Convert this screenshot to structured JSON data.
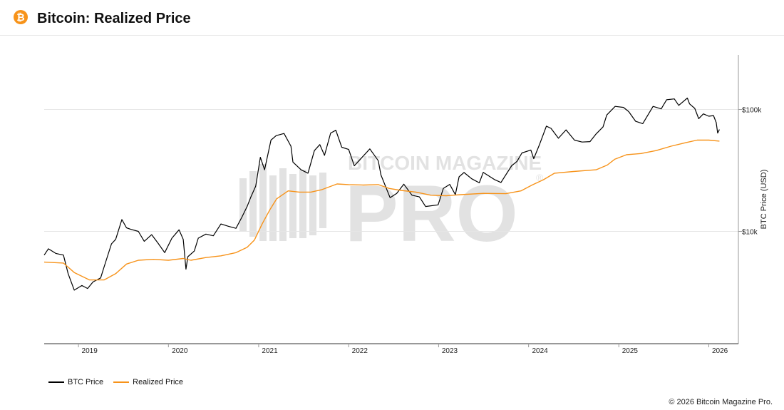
{
  "header": {
    "title": "Bitcoin: Realized Price",
    "icon": "bitcoin-icon"
  },
  "watermark": {
    "text_top": "BITCOIN MAGAZINE",
    "text_main": "PRO",
    "reg_mark": "®"
  },
  "colors": {
    "btc_price": "#000000",
    "realized_price": "#f7931a",
    "brand": "#f7931a",
    "grid": "#e6e6e6",
    "watermark": "#cccccc"
  },
  "chart_data": {
    "type": "line",
    "title": "Bitcoin: Realized Price",
    "xlabel": "",
    "ylabel": "BTC Price (USD)",
    "yscale": "log",
    "ylim": [
      1200,
      280000
    ],
    "xlim": [
      "2018-08-15",
      "2026-05-01"
    ],
    "x_ticks": [
      "2019",
      "2020",
      "2021",
      "2022",
      "2023",
      "2024",
      "2025",
      "2026"
    ],
    "y_ticks": [
      {
        "value": 10000,
        "label": "$10k"
      },
      {
        "value": 100000,
        "label": "$100k"
      }
    ],
    "grid": "horizontal",
    "legend": "bottom-left",
    "series": [
      {
        "name": "BTC Price",
        "color": "#000000",
        "points": [
          [
            "2018-08-15",
            6400
          ],
          [
            "2018-09-01",
            7200
          ],
          [
            "2018-10-01",
            6600
          ],
          [
            "2018-11-01",
            6400
          ],
          [
            "2018-11-20",
            4500
          ],
          [
            "2018-12-15",
            3300
          ],
          [
            "2019-01-15",
            3600
          ],
          [
            "2019-02-07",
            3400
          ],
          [
            "2019-03-01",
            3850
          ],
          [
            "2019-04-01",
            4150
          ],
          [
            "2019-04-15",
            5100
          ],
          [
            "2019-05-15",
            7900
          ],
          [
            "2019-06-01",
            8600
          ],
          [
            "2019-06-26",
            12500
          ],
          [
            "2019-07-15",
            10700
          ],
          [
            "2019-08-01",
            10400
          ],
          [
            "2019-09-01",
            10000
          ],
          [
            "2019-09-25",
            8300
          ],
          [
            "2019-10-25",
            9400
          ],
          [
            "2019-11-20",
            8000
          ],
          [
            "2019-12-17",
            6700
          ],
          [
            "2020-01-15",
            8800
          ],
          [
            "2020-02-13",
            10300
          ],
          [
            "2020-03-01",
            8600
          ],
          [
            "2020-03-12",
            4900
          ],
          [
            "2020-03-20",
            6200
          ],
          [
            "2020-04-15",
            6900
          ],
          [
            "2020-05-01",
            8800
          ],
          [
            "2020-06-01",
            9500
          ],
          [
            "2020-07-01",
            9200
          ],
          [
            "2020-08-01",
            11500
          ],
          [
            "2020-09-01",
            11000
          ],
          [
            "2020-10-01",
            10600
          ],
          [
            "2020-10-25",
            13100
          ],
          [
            "2020-11-15",
            16000
          ],
          [
            "2020-12-01",
            19300
          ],
          [
            "2020-12-20",
            23500
          ],
          [
            "2021-01-08",
            40500
          ],
          [
            "2021-01-25",
            32000
          ],
          [
            "2021-02-20",
            56000
          ],
          [
            "2021-03-13",
            61000
          ],
          [
            "2021-04-14",
            63500
          ],
          [
            "2021-05-12",
            50000
          ],
          [
            "2021-05-20",
            37000
          ],
          [
            "2021-06-22",
            32000
          ],
          [
            "2021-07-20",
            30000
          ],
          [
            "2021-08-15",
            46000
          ],
          [
            "2021-09-06",
            51500
          ],
          [
            "2021-09-25",
            42000
          ],
          [
            "2021-10-20",
            64000
          ],
          [
            "2021-11-10",
            67500
          ],
          [
            "2021-12-04",
            49000
          ],
          [
            "2022-01-01",
            47000
          ],
          [
            "2022-01-24",
            34500
          ],
          [
            "2022-03-28",
            47500
          ],
          [
            "2022-05-01",
            38000
          ],
          [
            "2022-05-12",
            29000
          ],
          [
            "2022-06-18",
            18900
          ],
          [
            "2022-07-15",
            20500
          ],
          [
            "2022-08-13",
            24400
          ],
          [
            "2022-09-15",
            19800
          ],
          [
            "2022-10-15",
            19200
          ],
          [
            "2022-11-09",
            16000
          ],
          [
            "2022-12-30",
            16500
          ],
          [
            "2023-01-20",
            22500
          ],
          [
            "2023-02-15",
            24300
          ],
          [
            "2023-03-10",
            20000
          ],
          [
            "2023-03-25",
            28000
          ],
          [
            "2023-04-14",
            30400
          ],
          [
            "2023-05-15",
            27000
          ],
          [
            "2023-06-15",
            25000
          ],
          [
            "2023-07-01",
            30500
          ],
          [
            "2023-08-17",
            26500
          ],
          [
            "2023-09-11",
            25200
          ],
          [
            "2023-10-24",
            34500
          ],
          [
            "2023-11-15",
            37500
          ],
          [
            "2023-12-05",
            44000
          ],
          [
            "2024-01-10",
            46500
          ],
          [
            "2024-01-22",
            39500
          ],
          [
            "2024-02-15",
            52000
          ],
          [
            "2024-03-13",
            73000
          ],
          [
            "2024-04-01",
            70000
          ],
          [
            "2024-05-01",
            58000
          ],
          [
            "2024-06-01",
            68000
          ],
          [
            "2024-07-05",
            56000
          ],
          [
            "2024-08-05",
            54000
          ],
          [
            "2024-09-06",
            54500
          ],
          [
            "2024-10-01",
            63000
          ],
          [
            "2024-10-29",
            72000
          ],
          [
            "2024-11-13",
            90000
          ],
          [
            "2024-12-17",
            106000
          ],
          [
            "2025-01-20",
            104000
          ],
          [
            "2025-02-10",
            96000
          ],
          [
            "2025-03-10",
            80000
          ],
          [
            "2025-04-08",
            76500
          ],
          [
            "2025-05-20",
            106000
          ],
          [
            "2025-06-22",
            101000
          ],
          [
            "2025-07-14",
            120000
          ],
          [
            "2025-08-14",
            122000
          ],
          [
            "2025-09-01",
            108000
          ],
          [
            "2025-10-06",
            124000
          ],
          [
            "2025-10-15",
            111000
          ],
          [
            "2025-11-05",
            102000
          ],
          [
            "2025-11-21",
            84000
          ],
          [
            "2025-12-10",
            92000
          ],
          [
            "2026-01-01",
            88000
          ],
          [
            "2026-01-20",
            89000
          ],
          [
            "2026-01-31",
            78000
          ],
          [
            "2026-02-06",
            64000
          ],
          [
            "2026-02-13",
            68500
          ]
        ]
      },
      {
        "name": "Realized Price",
        "color": "#f7931a",
        "points": [
          [
            "2018-08-15",
            5600
          ],
          [
            "2018-11-01",
            5500
          ],
          [
            "2018-12-15",
            4600
          ],
          [
            "2019-02-15",
            4000
          ],
          [
            "2019-04-15",
            4000
          ],
          [
            "2019-06-01",
            4500
          ],
          [
            "2019-07-15",
            5400
          ],
          [
            "2019-09-01",
            5800
          ],
          [
            "2019-11-01",
            5900
          ],
          [
            "2020-01-01",
            5800
          ],
          [
            "2020-03-01",
            6000
          ],
          [
            "2020-04-01",
            5800
          ],
          [
            "2020-06-01",
            6100
          ],
          [
            "2020-08-01",
            6300
          ],
          [
            "2020-10-01",
            6700
          ],
          [
            "2020-11-15",
            7400
          ],
          [
            "2020-12-15",
            8500
          ],
          [
            "2021-01-15",
            11500
          ],
          [
            "2021-02-15",
            15000
          ],
          [
            "2021-03-15",
            18500
          ],
          [
            "2021-05-01",
            21500
          ],
          [
            "2021-06-15",
            21000
          ],
          [
            "2021-08-01",
            21000
          ],
          [
            "2021-09-15",
            22000
          ],
          [
            "2021-11-15",
            24500
          ],
          [
            "2022-01-01",
            24200
          ],
          [
            "2022-03-01",
            24000
          ],
          [
            "2022-05-01",
            24200
          ],
          [
            "2022-06-15",
            22500
          ],
          [
            "2022-08-01",
            21700
          ],
          [
            "2022-10-01",
            21000
          ],
          [
            "2022-12-01",
            19800
          ],
          [
            "2023-02-01",
            19600
          ],
          [
            "2023-04-01",
            20000
          ],
          [
            "2023-07-01",
            20500
          ],
          [
            "2023-10-01",
            20400
          ],
          [
            "2023-12-01",
            21500
          ],
          [
            "2024-01-15",
            24000
          ],
          [
            "2024-03-01",
            26500
          ],
          [
            "2024-04-15",
            30000
          ],
          [
            "2024-07-01",
            31000
          ],
          [
            "2024-10-01",
            32000
          ],
          [
            "2024-11-15",
            35000
          ],
          [
            "2024-12-15",
            39000
          ],
          [
            "2025-02-01",
            42500
          ],
          [
            "2025-04-01",
            43500
          ],
          [
            "2025-06-01",
            46000
          ],
          [
            "2025-08-01",
            50000
          ],
          [
            "2025-10-01",
            53500
          ],
          [
            "2025-11-15",
            56000
          ],
          [
            "2026-01-01",
            56000
          ],
          [
            "2026-02-13",
            55000
          ]
        ]
      }
    ]
  },
  "legend": {
    "btc_price": "BTC Price",
    "realized_price": "Realized Price"
  },
  "footer": {
    "copyright": "© 2026 Bitcoin Magazine Pro."
  }
}
